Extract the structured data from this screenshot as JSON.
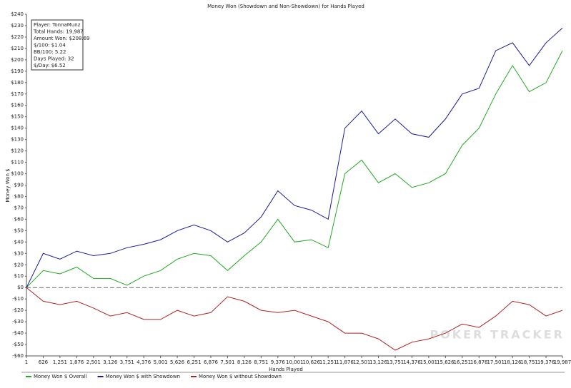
{
  "chart_data": {
    "type": "line",
    "title": "Money Won (Showdown and Non-Showdown) for Hands Played",
    "xlabel": "Hands Played",
    "ylabel": "Money Won $",
    "stats": [
      "Player: TonnaMunz",
      "Total Hands: 19,987",
      "Amount Won: $208.69",
      "$/100: $1.04",
      "BB/100: 5.22",
      "Days Played: 32",
      "$/Day: $6.52"
    ],
    "watermark": "POKER TRACKER",
    "x": [
      1,
      626,
      1251,
      1876,
      2501,
      3126,
      3751,
      4376,
      5001,
      5626,
      6251,
      6876,
      7501,
      8126,
      8751,
      9376,
      10001,
      10626,
      11251,
      11876,
      12501,
      13126,
      13751,
      14376,
      15001,
      15626,
      16251,
      16876,
      17501,
      18126,
      18751,
      19376,
      19987
    ],
    "series": [
      {
        "name": "Money Won $ Overall",
        "color": "#22aa22",
        "values": [
          0,
          15,
          12,
          18,
          8,
          8,
          2,
          10,
          15,
          25,
          30,
          28,
          15,
          28,
          40,
          60,
          40,
          42,
          35,
          100,
          112,
          92,
          100,
          88,
          92,
          100,
          125,
          140,
          170,
          195,
          172,
          180,
          208
        ]
      },
      {
        "name": "Money Won $ with Showdown",
        "color": "#1a1a99",
        "values": [
          0,
          30,
          25,
          32,
          28,
          30,
          35,
          38,
          42,
          50,
          55,
          50,
          40,
          48,
          62,
          85,
          72,
          68,
          60,
          140,
          155,
          135,
          148,
          135,
          132,
          148,
          170,
          175,
          208,
          215,
          195,
          215,
          228
        ]
      },
      {
        "name": "Money Won $ without Showdown",
        "color": "#b22222",
        "values": [
          0,
          -12,
          -15,
          -12,
          -18,
          -25,
          -22,
          -28,
          -28,
          -20,
          -25,
          -22,
          -8,
          -12,
          -20,
          -22,
          -20,
          -25,
          -30,
          -40,
          -40,
          -45,
          -55,
          -48,
          -45,
          -40,
          -32,
          -35,
          -25,
          -12,
          -15,
          -25,
          -20
        ]
      }
    ],
    "xlim": [
      1,
      19987
    ],
    "ylim": [
      -60,
      240
    ],
    "xticks": [
      1,
      626,
      {
        "value": 1251,
        "label": "1,251"
      },
      {
        "value": 1876,
        "label": "1,876"
      },
      {
        "value": 2501,
        "label": "2,501"
      },
      {
        "value": 3126,
        "label": "3,126"
      },
      {
        "value": 3751,
        "label": "3,751"
      },
      {
        "value": 4376,
        "label": "4,376"
      },
      {
        "value": 5001,
        "label": "5,001"
      },
      {
        "value": 5626,
        "label": "5,626"
      },
      {
        "value": 6251,
        "label": "6,251"
      },
      {
        "value": 6876,
        "label": "6,876"
      },
      {
        "value": 7501,
        "label": "7,501"
      },
      {
        "value": 8126,
        "label": "8,126"
      },
      {
        "value": 8751,
        "label": "8,751"
      },
      {
        "value": 9376,
        "label": "9,376"
      },
      {
        "value": 10001,
        "label": "10,001"
      },
      {
        "value": 10626,
        "label": "10,626"
      },
      {
        "value": 11251,
        "label": "11,251"
      },
      {
        "value": 11876,
        "label": "11,876"
      },
      {
        "value": 12501,
        "label": "12,501"
      },
      {
        "value": 13126,
        "label": "13,126"
      },
      {
        "value": 13751,
        "label": "13,751"
      },
      {
        "value": 14376,
        "label": "14,376"
      },
      {
        "value": 15001,
        "label": "15,001"
      },
      {
        "value": 15626,
        "label": "15,626"
      },
      {
        "value": 16251,
        "label": "16,251"
      },
      {
        "value": 16876,
        "label": "16,876"
      },
      {
        "value": 17501,
        "label": "17,501"
      },
      {
        "value": 18126,
        "label": "18,126"
      },
      {
        "value": 18751,
        "label": "18,751"
      },
      {
        "value": 19376,
        "label": "19,376"
      },
      {
        "value": 19987,
        "label": "19,987"
      }
    ],
    "yticks": [
      {
        "value": -60,
        "label": "-$60"
      },
      {
        "value": -50,
        "label": "-$50"
      },
      {
        "value": -40,
        "label": "-$40"
      },
      {
        "value": -30,
        "label": "-$30"
      },
      {
        "value": -20,
        "label": "-$20"
      },
      {
        "value": -10,
        "label": "-$10"
      },
      {
        "value": 0,
        "label": "$0"
      },
      {
        "value": 10,
        "label": "$10"
      },
      {
        "value": 20,
        "label": "$20"
      },
      {
        "value": 30,
        "label": "$30"
      },
      {
        "value": 40,
        "label": "$40"
      },
      {
        "value": 50,
        "label": "$50"
      },
      {
        "value": 60,
        "label": "$60"
      },
      {
        "value": 70,
        "label": "$70"
      },
      {
        "value": 80,
        "label": "$80"
      },
      {
        "value": 90,
        "label": "$90"
      },
      {
        "value": 100,
        "label": "$100"
      },
      {
        "value": 110,
        "label": "$110"
      },
      {
        "value": 120,
        "label": "$120"
      },
      {
        "value": 130,
        "label": "$130"
      },
      {
        "value": 140,
        "label": "$140"
      },
      {
        "value": 150,
        "label": "$150"
      },
      {
        "value": 160,
        "label": "$160"
      },
      {
        "value": 170,
        "label": "$170"
      },
      {
        "value": 180,
        "label": "$180"
      },
      {
        "value": 190,
        "label": "$190"
      },
      {
        "value": 200,
        "label": "$200"
      },
      {
        "value": 210,
        "label": "$210"
      },
      {
        "value": 220,
        "label": "$220"
      },
      {
        "value": 230,
        "label": "$230"
      },
      {
        "value": 240,
        "label": "$240"
      }
    ],
    "grid": false,
    "legend": "bottom"
  }
}
